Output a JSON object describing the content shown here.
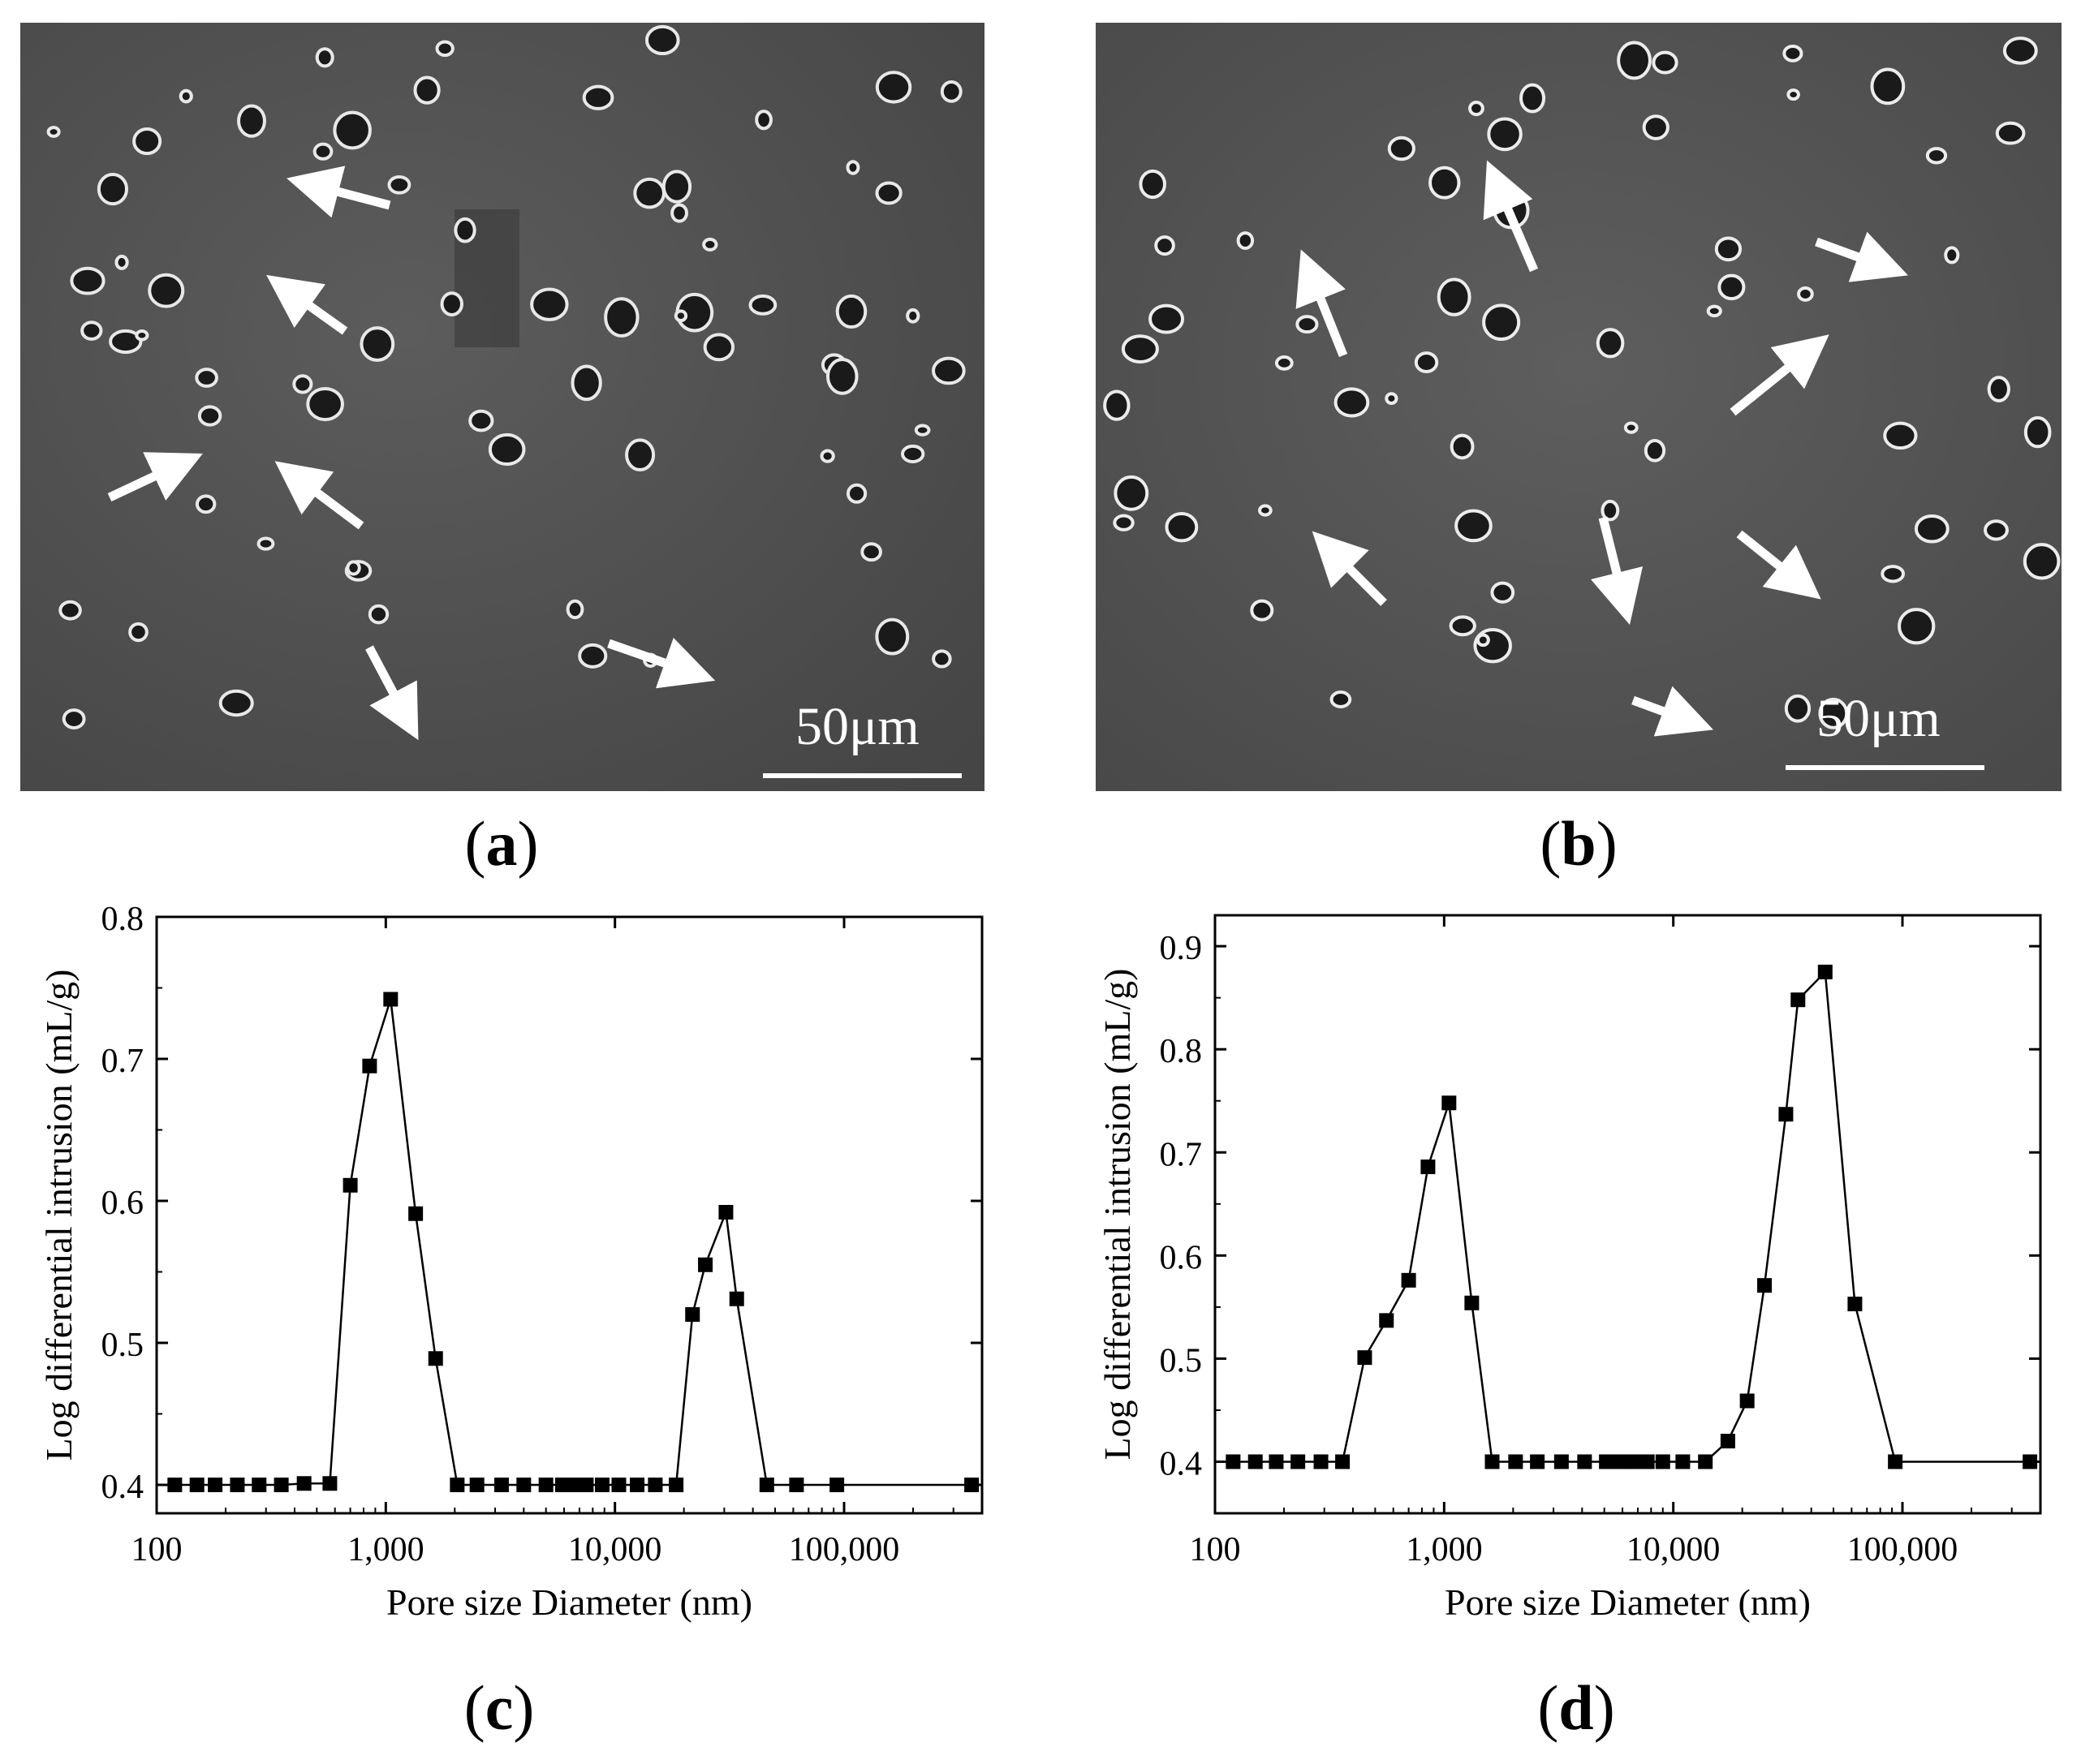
{
  "panels": [
    {
      "id": "a",
      "label_open": "(",
      "label_letter": "a",
      "label_close": ")",
      "scale_bar": "50μm"
    },
    {
      "id": "b",
      "label_open": "(",
      "label_letter": "b",
      "label_close": ")",
      "scale_bar": "50μm"
    },
    {
      "id": "c",
      "label_open": "(",
      "label_letter": "c",
      "label_close": ")"
    },
    {
      "id": "d",
      "label_open": "(",
      "label_letter": "d",
      "label_close": ")"
    }
  ],
  "colors": {
    "sem_background": "#5a5a5a",
    "pore_rim": "#e8e8e8",
    "arrow": "#ffffff",
    "series": "#000000"
  },
  "chart_data": [
    {
      "panel": "c",
      "type": "line",
      "xscale": "log",
      "xlabel": "Pore size Diameter (nm)",
      "ylabel": "Log differential intrusion (mL/g)",
      "xlim": [
        100,
        400000
      ],
      "ylim": [
        0.38,
        0.8
      ],
      "xticks": [
        100,
        1000,
        10000,
        100000
      ],
      "xtick_labels": [
        "100",
        "1,000",
        "10,000",
        "100,000"
      ],
      "yticks": [
        0.4,
        0.5,
        0.6,
        0.7,
        0.8
      ],
      "ytick_labels": [
        "0.4",
        "0.5",
        "0.6",
        "0.7",
        "0.8"
      ],
      "marker": "square",
      "series": [
        {
          "x": [
            120,
            150,
            180,
            225,
            280,
            350,
            440,
            570,
            700,
            850,
            1050,
            1350,
            1650,
            2050,
            2500,
            3200,
            4000,
            5000,
            5900,
            6600,
            7500,
            8800,
            10400,
            12500,
            15000,
            18500,
            21800,
            24800,
            30500,
            34000,
            46000,
            62000,
            93000,
            360000
          ],
          "y": [
            0.4,
            0.4,
            0.4,
            0.4,
            0.4,
            0.4,
            0.401,
            0.401,
            0.611,
            0.695,
            0.742,
            0.591,
            0.489,
            0.4,
            0.4,
            0.4,
            0.4,
            0.4,
            0.4,
            0.4,
            0.4,
            0.4,
            0.4,
            0.4,
            0.4,
            0.4,
            0.52,
            0.555,
            0.592,
            0.531,
            0.4,
            0.4,
            0.4,
            0.4
          ]
        }
      ]
    },
    {
      "panel": "d",
      "type": "line",
      "xscale": "log",
      "xlabel": "Pore size Diameter (nm)",
      "ylabel": "Log differential intrusion (mL/g)",
      "xlim": [
        100,
        400000
      ],
      "ylim": [
        0.35,
        0.93
      ],
      "xticks": [
        100,
        1000,
        10000,
        100000
      ],
      "xtick_labels": [
        "100",
        "1,000",
        "10,000",
        "100,000"
      ],
      "yticks": [
        0.4,
        0.5,
        0.6,
        0.7,
        0.8,
        0.9
      ],
      "ytick_labels": [
        "0.4",
        "0.5",
        "0.6",
        "0.7",
        "0.8",
        "0.9"
      ],
      "marker": "square",
      "series": [
        {
          "x": [
            120,
            150,
            185,
            230,
            290,
            360,
            450,
            560,
            700,
            850,
            1050,
            1320,
            1620,
            2050,
            2550,
            3250,
            4100,
            5100,
            5900,
            6700,
            7700,
            9000,
            11000,
            13800,
            17300,
            21000,
            25000,
            31000,
            35000,
            46000,
            62000,
            93000,
            360000
          ],
          "y": [
            0.4,
            0.4,
            0.4,
            0.4,
            0.4,
            0.4,
            0.501,
            0.537,
            0.576,
            0.686,
            0.748,
            0.554,
            0.4,
            0.4,
            0.4,
            0.4,
            0.4,
            0.4,
            0.4,
            0.4,
            0.4,
            0.4,
            0.4,
            0.4,
            0.42,
            0.459,
            0.571,
            0.737,
            0.848,
            0.875,
            0.553,
            0.4,
            0.4
          ]
        }
      ]
    }
  ]
}
